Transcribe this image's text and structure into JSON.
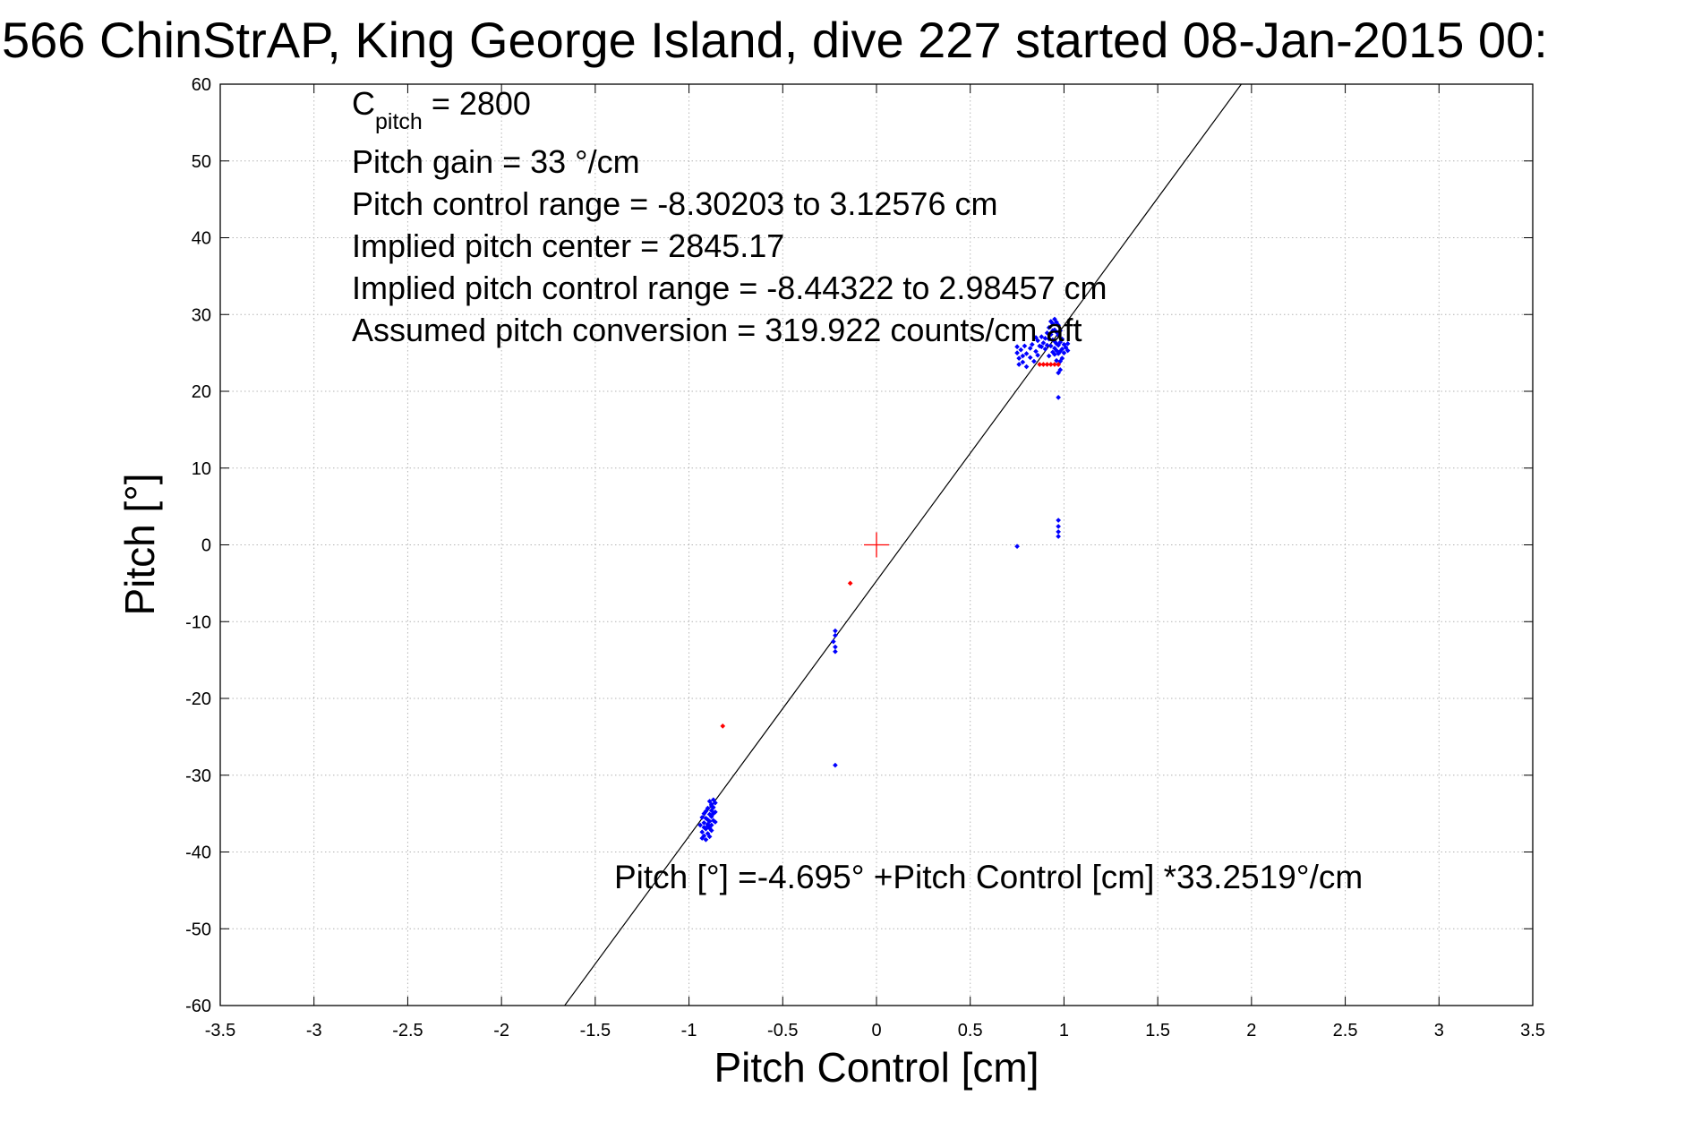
{
  "title": "566 ChinStrAP, King George Island, dive 227 started 08-Jan-2015 00:",
  "chart_data": {
    "type": "scatter",
    "xlabel": "Pitch Control [cm]",
    "ylabel": "Pitch [°]",
    "xlim": [
      -3.5,
      3.5
    ],
    "ylim": [
      -60,
      60
    ],
    "xticks": [
      -3.5,
      -3,
      -2.5,
      -2,
      -1.5,
      -1,
      -0.5,
      0,
      0.5,
      1,
      1.5,
      2,
      2.5,
      3,
      3.5
    ],
    "yticks": [
      -60,
      -50,
      -40,
      -30,
      -20,
      -10,
      0,
      10,
      20,
      30,
      40,
      50,
      60
    ],
    "xtick_labels": [
      "-3.5",
      "-3",
      "-2.5",
      "-2",
      "-1.5",
      "-1",
      "-0.5",
      "0",
      "0.5",
      "1",
      "1.5",
      "2",
      "2.5",
      "3",
      "3.5"
    ],
    "ytick_labels": [
      "-60",
      "-50",
      "-40",
      "-30",
      "-20",
      "-10",
      "0",
      "10",
      "20",
      "30",
      "40",
      "50",
      "60"
    ],
    "grid": true,
    "annotations": {
      "c_pitch_main": "C",
      "c_pitch_sub": "pitch",
      "c_pitch_value": " = 2800",
      "pitch_gain": "Pitch gain = 33 °/cm",
      "pitch_control_range": "Pitch control range = -8.30203 to 3.12576 cm",
      "implied_pitch_center": "Implied pitch center = 2845.17",
      "implied_pitch_control_range": "Implied pitch control range = -8.44322 to 2.98457 cm",
      "assumed_pitch_conversion": "Assumed pitch conversion = 319.922 counts/cm aft",
      "fit_equation": "Pitch [°] =-4.695° +Pitch Control [cm] *33.2519°/cm"
    },
    "fit_line": {
      "intercept": -4.695,
      "slope": 33.2519
    },
    "center_marker": {
      "x": 0,
      "y": 0,
      "color": "#ff0000"
    },
    "series": [
      {
        "color": "#0000ff",
        "points": [
          [
            -0.93,
            -38.2
          ],
          [
            -0.93,
            -37.4
          ],
          [
            -0.92,
            -36.8
          ],
          [
            -0.92,
            -36.2
          ],
          [
            -0.91,
            -35.6
          ],
          [
            -0.92,
            -37.9
          ],
          [
            -0.91,
            -37.0
          ],
          [
            -0.9,
            -36.4
          ],
          [
            -0.9,
            -35.8
          ],
          [
            -0.89,
            -35.1
          ],
          [
            -0.9,
            -37.6
          ],
          [
            -0.89,
            -36.9
          ],
          [
            -0.89,
            -36.0
          ],
          [
            -0.88,
            -35.4
          ],
          [
            -0.88,
            -34.6
          ],
          [
            -0.89,
            -38.0
          ],
          [
            -0.88,
            -37.2
          ],
          [
            -0.88,
            -36.5
          ],
          [
            -0.87,
            -35.9
          ],
          [
            -0.87,
            -35.0
          ],
          [
            -0.87,
            -34.2
          ],
          [
            -0.86,
            -33.6
          ],
          [
            -0.87,
            -33.2
          ],
          [
            -0.86,
            -34.8
          ],
          [
            -0.86,
            -36.1
          ],
          [
            -0.94,
            -36.5
          ],
          [
            -0.93,
            -35.5
          ],
          [
            -0.91,
            -34.7
          ],
          [
            -0.9,
            -34.3
          ],
          [
            -0.88,
            -33.8
          ],
          [
            -0.89,
            -33.4
          ],
          [
            -0.92,
            -35.0
          ],
          [
            -0.91,
            -38.4
          ],
          [
            -0.9,
            -36.6
          ],
          [
            -0.88,
            -34.0
          ],
          [
            -0.22,
            -11.2
          ],
          [
            -0.22,
            -11.8
          ],
          [
            -0.23,
            -12.6
          ],
          [
            -0.22,
            -13.3
          ],
          [
            -0.22,
            -13.9
          ],
          [
            -0.22,
            -28.7
          ],
          [
            0.75,
            -0.2
          ],
          [
            0.97,
            3.2
          ],
          [
            0.97,
            2.4
          ],
          [
            0.97,
            1.7
          ],
          [
            0.97,
            1.1
          ],
          [
            0.97,
            19.2
          ],
          [
            0.75,
            25.8
          ],
          [
            0.75,
            25.0
          ],
          [
            0.76,
            24.3
          ],
          [
            0.76,
            23.5
          ],
          [
            0.77,
            25.4
          ],
          [
            0.78,
            24.6
          ],
          [
            0.78,
            23.8
          ],
          [
            0.79,
            25.9
          ],
          [
            0.8,
            24.9
          ],
          [
            0.8,
            23.2
          ],
          [
            0.82,
            25.6
          ],
          [
            0.82,
            24.4
          ],
          [
            0.83,
            26.1
          ],
          [
            0.84,
            23.9
          ],
          [
            0.85,
            25.2
          ],
          [
            0.86,
            26.6
          ],
          [
            0.86,
            24.7
          ],
          [
            0.88,
            25.8
          ],
          [
            0.88,
            27.1
          ],
          [
            0.89,
            26.3
          ],
          [
            0.9,
            25.5
          ],
          [
            0.91,
            27.6
          ],
          [
            0.91,
            26.0
          ],
          [
            0.92,
            28.3
          ],
          [
            0.92,
            24.6
          ],
          [
            0.93,
            29.1
          ],
          [
            0.93,
            27.4
          ],
          [
            0.93,
            25.9
          ],
          [
            0.94,
            28.8
          ],
          [
            0.94,
            26.7
          ],
          [
            0.94,
            25.1
          ],
          [
            0.95,
            29.4
          ],
          [
            0.95,
            28.0
          ],
          [
            0.95,
            26.5
          ],
          [
            0.95,
            25.6
          ],
          [
            0.95,
            24.8
          ],
          [
            0.96,
            29.0
          ],
          [
            0.96,
            27.7
          ],
          [
            0.96,
            26.2
          ],
          [
            0.96,
            25.3
          ],
          [
            0.96,
            24.0
          ],
          [
            0.97,
            28.6
          ],
          [
            0.97,
            27.3
          ],
          [
            0.97,
            26.0
          ],
          [
            0.97,
            24.9
          ],
          [
            0.97,
            23.5
          ],
          [
            0.97,
            22.4
          ],
          [
            0.98,
            27.9
          ],
          [
            0.98,
            26.4
          ],
          [
            0.98,
            25.2
          ],
          [
            0.98,
            23.9
          ],
          [
            0.98,
            22.8
          ],
          [
            0.99,
            26.8
          ],
          [
            0.99,
            25.5
          ],
          [
            1.0,
            26.1
          ],
          [
            1.0,
            25.0
          ],
          [
            1.01,
            25.7
          ],
          [
            1.02,
            25.3
          ],
          [
            1.02,
            26.2
          ],
          [
            0.94,
            27.9
          ],
          [
            0.92,
            26.8
          ],
          [
            0.9,
            26.9
          ],
          [
            0.87,
            25.9
          ],
          [
            0.85,
            27.0
          ],
          [
            0.99,
            24.3
          ]
        ]
      },
      {
        "color": "#ff0000",
        "points": [
          [
            -0.82,
            -23.6
          ],
          [
            -0.14,
            -5.0
          ],
          [
            0.87,
            23.5
          ],
          [
            0.89,
            23.5
          ],
          [
            0.91,
            23.5
          ],
          [
            0.93,
            23.5
          ],
          [
            0.95,
            23.5
          ],
          [
            0.97,
            23.5
          ]
        ]
      }
    ]
  }
}
